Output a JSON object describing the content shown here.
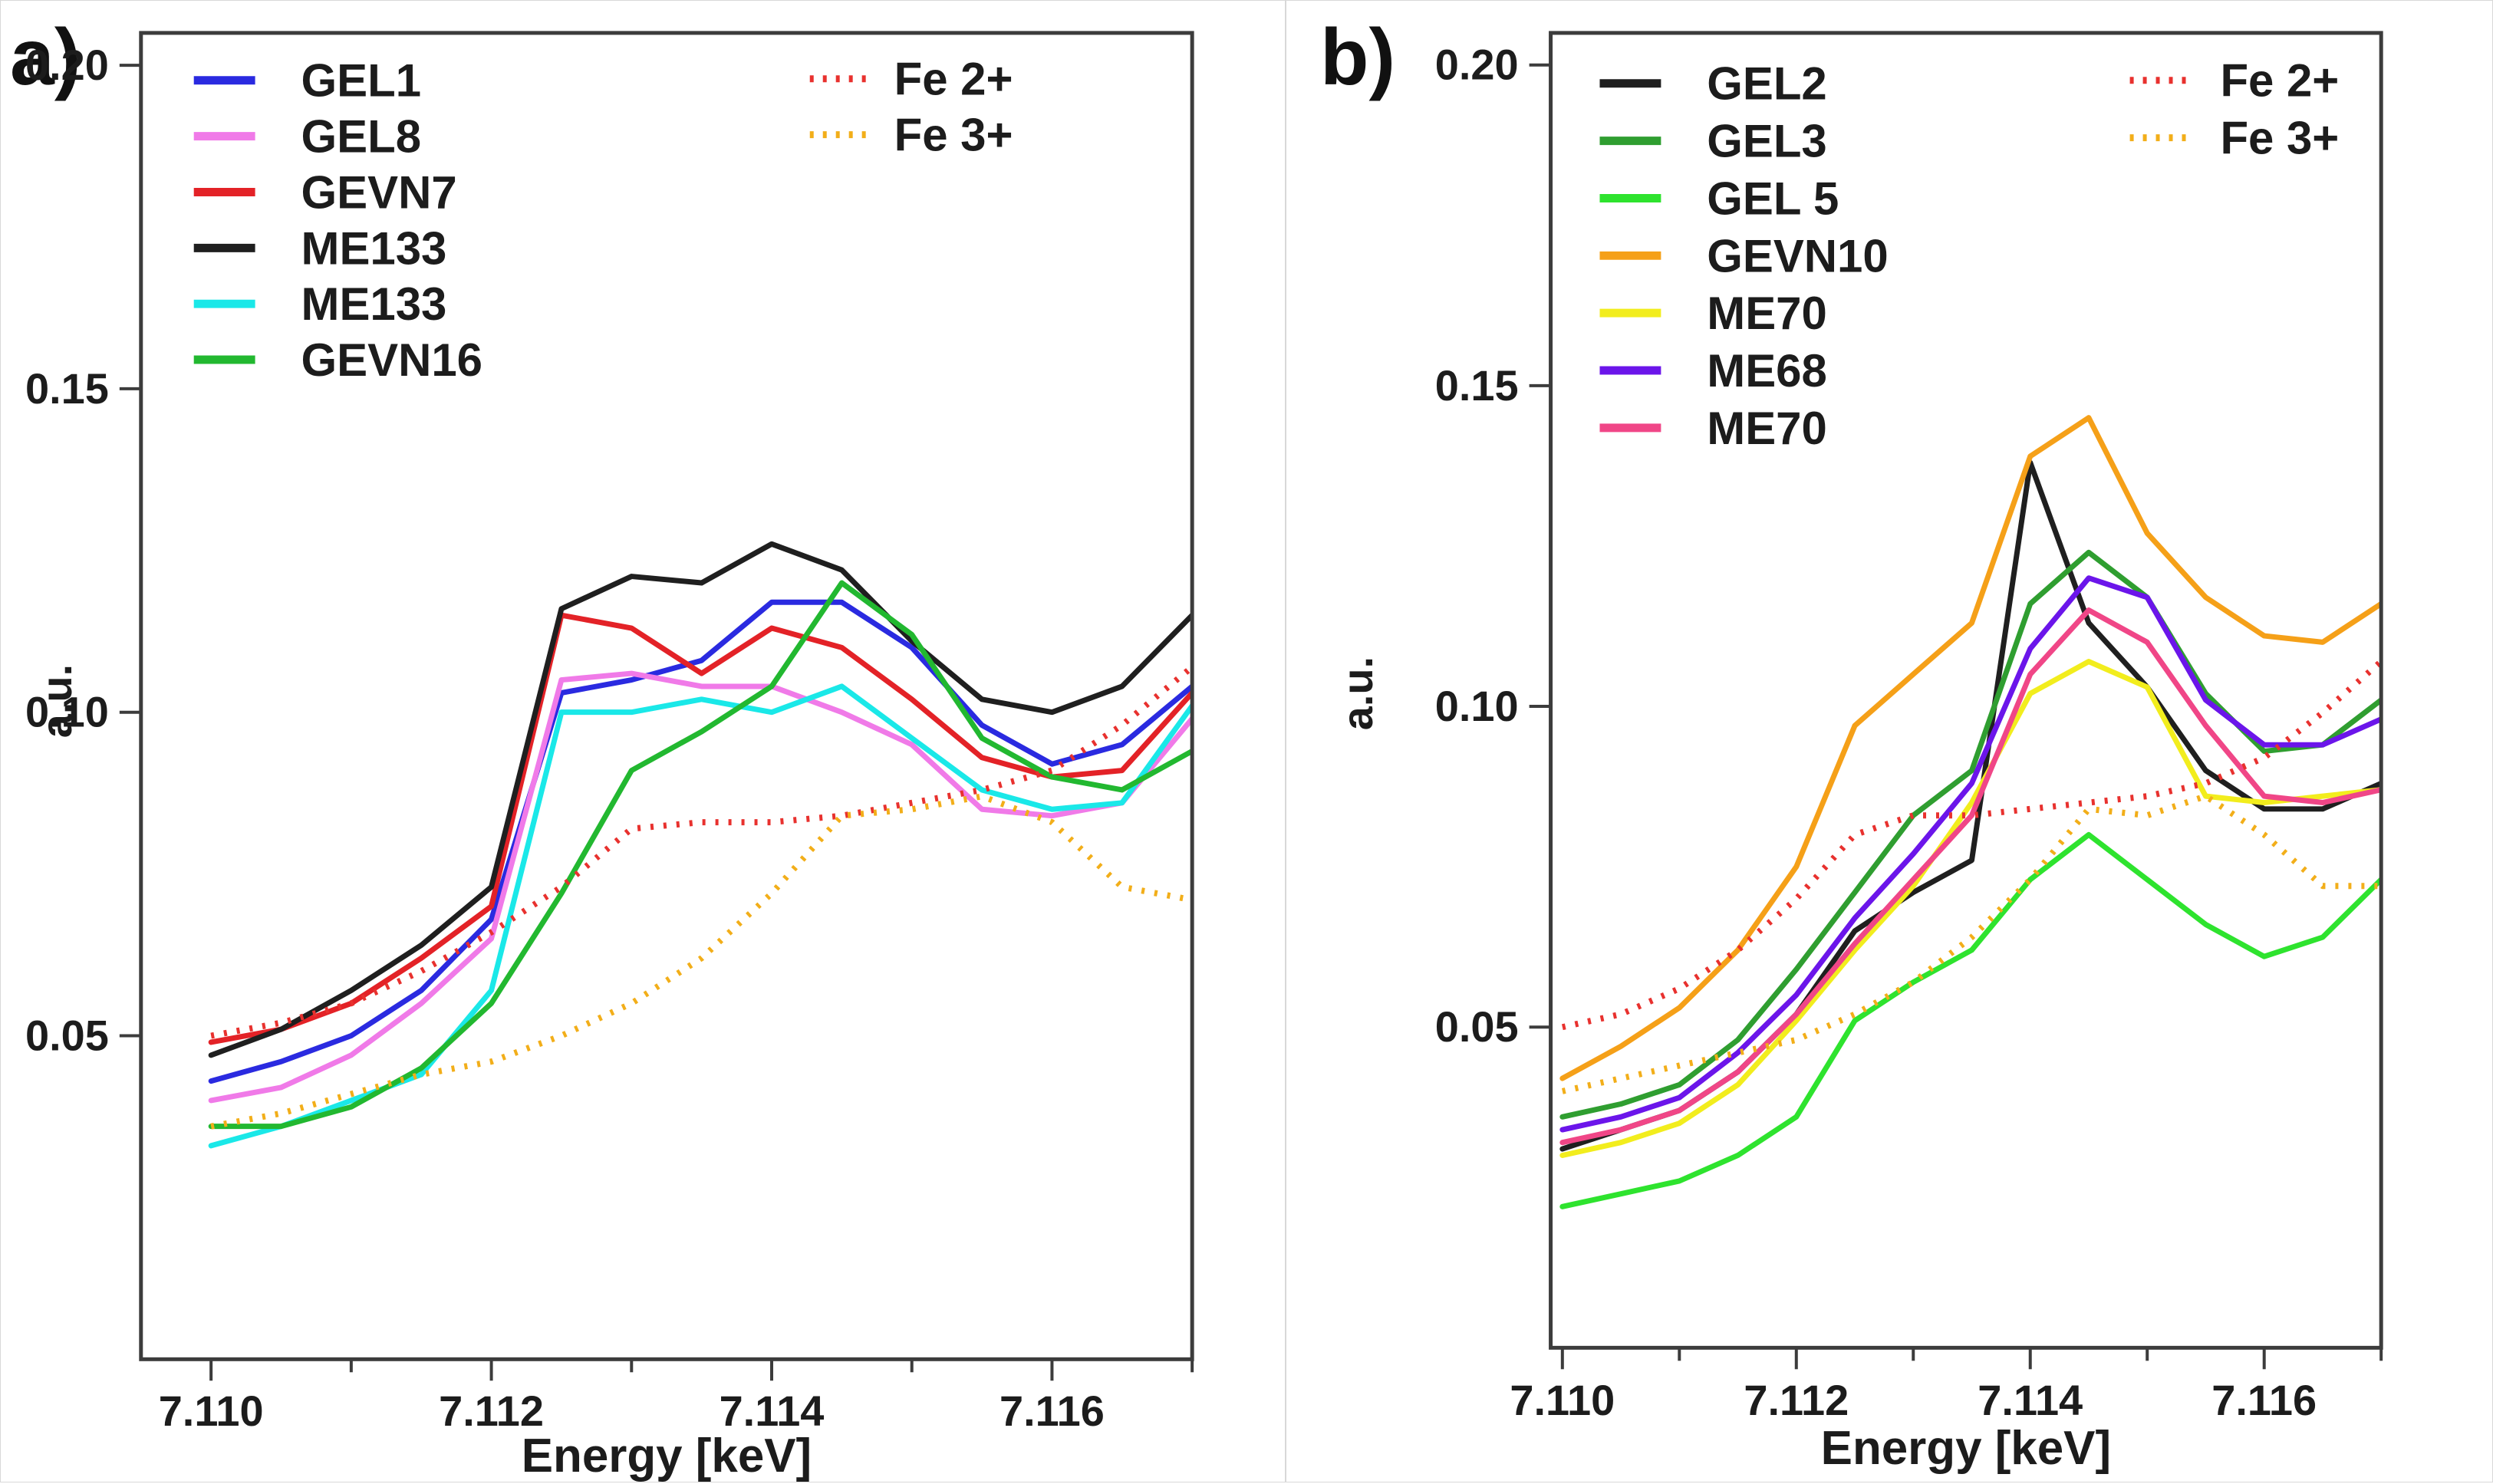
{
  "figure": {
    "background": "#ffffff",
    "border_color": "#d8d8d8"
  },
  "chart_data": [
    {
      "type": "line",
      "panel_label": "a)",
      "xlabel": "Energy [keV]",
      "ylabel": "a.u.",
      "xlim": [
        7.1095,
        7.117
      ],
      "ylim": [
        0.0,
        0.205
      ],
      "grid": false,
      "legend_position": "top-left and top-right inside axes",
      "xticks_major": [
        7.11,
        7.112,
        7.114,
        7.116
      ],
      "xtick_labels": [
        "7.110",
        "7.112",
        "7.114",
        "7.116"
      ],
      "xticks_minor": [
        7.111,
        7.113,
        7.115,
        7.117
      ],
      "yticks": [
        0.05,
        0.1,
        0.15,
        0.2
      ],
      "ytick_labels": [
        "0.05",
        "0.10",
        "0.15",
        "0.20"
      ],
      "axis_color": "#3c3c3c",
      "text_color": "#1c1c1c",
      "x": [
        7.11,
        7.1105,
        7.111,
        7.1115,
        7.112,
        7.1125,
        7.113,
        7.1135,
        7.114,
        7.1145,
        7.115,
        7.1155,
        7.116,
        7.1165,
        7.117
      ],
      "series": [
        {
          "name": "GEL1",
          "color": "#2a2ae0",
          "style": "solid",
          "legend": "main",
          "values": [
            0.043,
            0.046,
            0.05,
            0.057,
            0.068,
            0.103,
            0.105,
            0.108,
            0.117,
            0.117,
            0.11,
            0.098,
            0.092,
            0.095,
            0.104
          ]
        },
        {
          "name": "GEL8",
          "color": "#f07ae8",
          "style": "solid",
          "legend": "main",
          "values": [
            0.04,
            0.042,
            0.047,
            0.055,
            0.065,
            0.105,
            0.106,
            0.104,
            0.104,
            0.1,
            0.095,
            0.085,
            0.084,
            0.086,
            0.099
          ]
        },
        {
          "name": "GEVN7",
          "color": "#e32227",
          "style": "solid",
          "legend": "main",
          "values": [
            0.049,
            0.051,
            0.055,
            0.062,
            0.07,
            0.115,
            0.113,
            0.106,
            0.113,
            0.11,
            0.102,
            0.093,
            0.09,
            0.091,
            0.103
          ]
        },
        {
          "name": "ME133",
          "color": "#1f1f1f",
          "style": "solid",
          "legend": "main",
          "values": [
            0.047,
            0.051,
            0.057,
            0.064,
            0.073,
            0.116,
            0.121,
            0.12,
            0.126,
            0.122,
            0.111,
            0.102,
            0.1,
            0.104,
            0.115
          ]
        },
        {
          "name": "ME133",
          "color": "#1ae8e8",
          "style": "solid",
          "legend": "main",
          "values": [
            0.033,
            0.036,
            0.04,
            0.044,
            0.057,
            0.1,
            0.1,
            0.102,
            0.1,
            0.104,
            0.096,
            0.088,
            0.085,
            0.086,
            0.101
          ]
        },
        {
          "name": "GEVN16",
          "color": "#22b830",
          "style": "solid",
          "legend": "main",
          "values": [
            0.036,
            0.036,
            0.039,
            0.045,
            0.055,
            0.072,
            0.091,
            0.097,
            0.104,
            0.12,
            0.112,
            0.096,
            0.09,
            0.088,
            0.094
          ]
        },
        {
          "name": "Fe 2+",
          "color": "#e8312e",
          "style": "dotted",
          "legend": "fe",
          "values": [
            0.05,
            0.052,
            0.055,
            0.06,
            0.066,
            0.073,
            0.082,
            0.083,
            0.083,
            0.084,
            0.086,
            0.088,
            0.091,
            0.098,
            0.107
          ]
        },
        {
          "name": "Fe 3+",
          "color": "#f2ae19",
          "style": "dotted",
          "legend": "fe",
          "values": [
            0.036,
            0.038,
            0.041,
            0.044,
            0.046,
            0.05,
            0.055,
            0.062,
            0.072,
            0.084,
            0.085,
            0.087,
            0.083,
            0.073,
            0.071
          ]
        }
      ]
    },
    {
      "type": "line",
      "panel_label": "b)",
      "xlabel": "Energy [keV]",
      "ylabel": "a.u.",
      "xlim": [
        7.1099,
        7.117
      ],
      "ylim": [
        0.0,
        0.205
      ],
      "grid": false,
      "legend_position": "top-left and top-right inside axes",
      "xticks_major": [
        7.11,
        7.112,
        7.114,
        7.116
      ],
      "xtick_labels": [
        "7.110",
        "7.112",
        "7.114",
        "7.116"
      ],
      "xticks_minor": [
        7.111,
        7.113,
        7.115,
        7.117
      ],
      "yticks": [
        0.05,
        0.1,
        0.15,
        0.2
      ],
      "ytick_labels": [
        "0.05",
        "0.10",
        "0.15",
        "0.20"
      ],
      "axis_color": "#3c3c3c",
      "text_color": "#1c1c1c",
      "x": [
        7.11,
        7.1105,
        7.111,
        7.1115,
        7.112,
        7.1125,
        7.113,
        7.1135,
        7.114,
        7.1145,
        7.115,
        7.1155,
        7.116,
        7.1165,
        7.117
      ],
      "series": [
        {
          "name": "GEL2",
          "color": "#1f1f1f",
          "style": "solid",
          "legend": "main",
          "values": [
            0.031,
            0.034,
            0.037,
            0.043,
            0.052,
            0.065,
            0.071,
            0.076,
            0.138,
            0.113,
            0.103,
            0.09,
            0.084,
            0.084,
            0.088
          ]
        },
        {
          "name": "GEL3",
          "color": "#2f9e30",
          "style": "solid",
          "legend": "main",
          "values": [
            0.036,
            0.038,
            0.041,
            0.048,
            0.059,
            0.071,
            0.083,
            0.09,
            0.116,
            0.124,
            0.117,
            0.102,
            0.093,
            0.094,
            0.101
          ]
        },
        {
          "name": "GEL 5",
          "color": "#2ee32e",
          "style": "solid",
          "legend": "main",
          "values": [
            0.022,
            0.024,
            0.026,
            0.03,
            0.036,
            0.051,
            0.057,
            0.062,
            0.073,
            0.08,
            0.073,
            0.066,
            0.061,
            0.064,
            0.073
          ]
        },
        {
          "name": "GEVN10",
          "color": "#f5a018",
          "style": "solid",
          "legend": "main",
          "values": [
            0.042,
            0.047,
            0.053,
            0.062,
            0.075,
            0.097,
            0.105,
            0.113,
            0.139,
            0.145,
            0.127,
            0.117,
            0.111,
            0.11,
            0.116
          ]
        },
        {
          "name": "ME70",
          "color": "#f2ed1d",
          "style": "solid",
          "legend": "main",
          "values": [
            0.03,
            0.032,
            0.035,
            0.041,
            0.051,
            0.062,
            0.072,
            0.085,
            0.102,
            0.107,
            0.103,
            0.086,
            0.085,
            0.086,
            0.087
          ]
        },
        {
          "name": "ME68",
          "color": "#6b15ea",
          "style": "solid",
          "legend": "main",
          "values": [
            0.034,
            0.036,
            0.039,
            0.046,
            0.055,
            0.067,
            0.077,
            0.088,
            0.109,
            0.12,
            0.117,
            0.101,
            0.094,
            0.094,
            0.098
          ]
        },
        {
          "name": "ME70",
          "color": "#f04687",
          "style": "solid",
          "legend": "main",
          "values": [
            0.032,
            0.034,
            0.037,
            0.043,
            0.052,
            0.063,
            0.073,
            0.083,
            0.105,
            0.115,
            0.11,
            0.097,
            0.086,
            0.085,
            0.087
          ]
        },
        {
          "name": "Fe 2+",
          "color": "#e8312e",
          "style": "dotted",
          "legend": "fe",
          "values": [
            0.05,
            0.052,
            0.056,
            0.062,
            0.07,
            0.08,
            0.083,
            0.083,
            0.084,
            0.085,
            0.086,
            0.088,
            0.092,
            0.099,
            0.107
          ]
        },
        {
          "name": "Fe 3+",
          "color": "#f2ae19",
          "style": "dotted",
          "legend": "fe",
          "values": [
            0.04,
            0.042,
            0.044,
            0.046,
            0.048,
            0.052,
            0.057,
            0.064,
            0.073,
            0.084,
            0.083,
            0.086,
            0.08,
            0.072,
            0.072
          ]
        }
      ]
    }
  ]
}
